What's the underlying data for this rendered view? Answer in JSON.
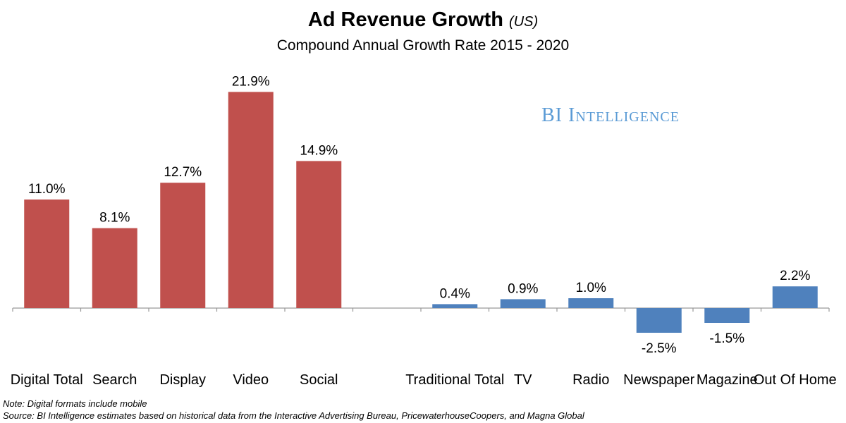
{
  "header": {
    "title": "Ad Revenue Growth",
    "title_scope": "(US)",
    "subtitle": "Compound Annual Growth Rate 2015 - 2020"
  },
  "watermark": "BI Intelligence",
  "notes": {
    "note": "Note: Digital formats include mobile",
    "source": "Source: BI Intelligence estimates based on historical data from the Interactive Advertising Bureau, PricewaterhouseCoopers, and Magna Global"
  },
  "chart_data": {
    "type": "bar",
    "title": "Ad Revenue Growth (US)",
    "subtitle": "Compound Annual Growth Rate 2015 - 2020",
    "categories": [
      "Digital Total",
      "Search",
      "Display",
      "Video",
      "Social",
      "",
      "Traditional Total",
      "TV",
      "Radio",
      "Newspaper",
      "Magazine",
      "Out Of Home"
    ],
    "values": [
      11.0,
      8.1,
      12.7,
      21.9,
      14.9,
      null,
      0.4,
      0.9,
      1.0,
      -2.5,
      -1.5,
      2.2
    ],
    "value_labels": [
      "11.0%",
      "8.1%",
      "12.7%",
      "21.9%",
      "14.9%",
      "",
      "0.4%",
      "0.9%",
      "1.0%",
      "-2.5%",
      "-1.5%",
      "2.2%"
    ],
    "colors": [
      "#c0504d",
      "#c0504d",
      "#c0504d",
      "#c0504d",
      "#c0504d",
      "",
      "#4f81bd",
      "#4f81bd",
      "#4f81bd",
      "#4f81bd",
      "#4f81bd",
      "#4f81bd"
    ],
    "ylim": [
      -3,
      23
    ],
    "grid": false,
    "legend": "none"
  }
}
